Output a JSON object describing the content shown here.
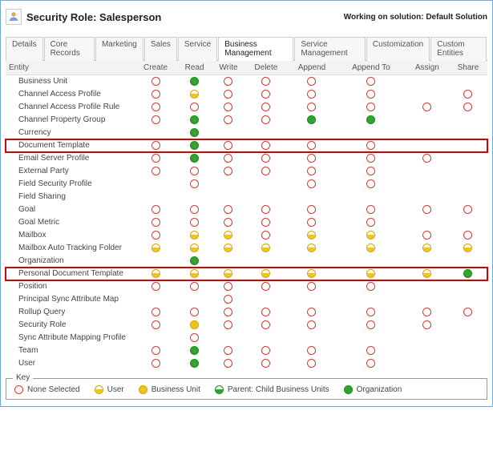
{
  "header": {
    "title": "Security Role: Salesperson",
    "solution": "Working on solution: Default Solution"
  },
  "tabs": [
    {
      "label": "Details"
    },
    {
      "label": "Core Records"
    },
    {
      "label": "Marketing"
    },
    {
      "label": "Sales"
    },
    {
      "label": "Service"
    },
    {
      "label": "Business Management"
    },
    {
      "label": "Service Management"
    },
    {
      "label": "Customization"
    },
    {
      "label": "Custom Entities"
    }
  ],
  "active_tab": "Business Management",
  "columns": [
    "Entity",
    "Create",
    "Read",
    "Write",
    "Delete",
    "Append",
    "Append To",
    "Assign",
    "Share"
  ],
  "levels": {
    "none": "lvl-none",
    "user": "lvl-user",
    "bu": "lvl-bu",
    "parent": "lvl-parent",
    "org": "lvl-org"
  },
  "highlights": [
    "Document Template",
    "Personal Document Template"
  ],
  "highlight_color": "#d40000",
  "rows": [
    {
      "entity": "Business Unit",
      "p": [
        "none",
        "org",
        "none",
        "none",
        "none",
        "none",
        "",
        ""
      ]
    },
    {
      "entity": "Channel Access Profile",
      "p": [
        "none",
        "user",
        "none",
        "none",
        "none",
        "none",
        "",
        "none"
      ]
    },
    {
      "entity": "Channel Access Profile Rule",
      "p": [
        "none",
        "none",
        "none",
        "none",
        "none",
        "none",
        "none",
        "none"
      ]
    },
    {
      "entity": "Channel Property Group",
      "p": [
        "none",
        "org",
        "none",
        "none",
        "org",
        "org",
        "",
        ""
      ]
    },
    {
      "entity": "Currency",
      "p": [
        "",
        "org",
        "",
        "",
        "",
        "",
        "",
        ""
      ]
    },
    {
      "entity": "Document Template",
      "p": [
        "none",
        "org",
        "none",
        "none",
        "none",
        "none",
        "",
        ""
      ]
    },
    {
      "entity": "Email Server Profile",
      "p": [
        "none",
        "org",
        "none",
        "none",
        "none",
        "none",
        "none",
        ""
      ]
    },
    {
      "entity": "External Party",
      "p": [
        "none",
        "none",
        "none",
        "none",
        "none",
        "none",
        "",
        ""
      ]
    },
    {
      "entity": "Field Security Profile",
      "p": [
        "",
        "none",
        "",
        "",
        "none",
        "none",
        "",
        ""
      ]
    },
    {
      "entity": "Field Sharing",
      "p": [
        "",
        "",
        "",
        "",
        "",
        "",
        "",
        ""
      ]
    },
    {
      "entity": "Goal",
      "p": [
        "none",
        "none",
        "none",
        "none",
        "none",
        "none",
        "none",
        "none"
      ]
    },
    {
      "entity": "Goal Metric",
      "p": [
        "none",
        "none",
        "none",
        "none",
        "none",
        "none",
        "",
        ""
      ]
    },
    {
      "entity": "Mailbox",
      "p": [
        "none",
        "user",
        "user",
        "none",
        "user",
        "user",
        "none",
        "none"
      ]
    },
    {
      "entity": "Mailbox Auto Tracking Folder",
      "p": [
        "user",
        "user",
        "user",
        "user",
        "user",
        "user",
        "user",
        "user"
      ]
    },
    {
      "entity": "Organization",
      "p": [
        "",
        "org",
        "",
        "",
        "",
        "",
        "",
        ""
      ]
    },
    {
      "entity": "Personal Document Template",
      "p": [
        "user",
        "user",
        "user",
        "user",
        "user",
        "user",
        "user",
        "org"
      ]
    },
    {
      "entity": "Position",
      "p": [
        "none",
        "none",
        "none",
        "none",
        "none",
        "none",
        "",
        ""
      ]
    },
    {
      "entity": "Principal Sync Attribute Map",
      "p": [
        "",
        "",
        "none",
        "",
        "",
        "",
        "",
        ""
      ]
    },
    {
      "entity": "Rollup Query",
      "p": [
        "none",
        "none",
        "none",
        "none",
        "none",
        "none",
        "none",
        "none"
      ]
    },
    {
      "entity": "Security Role",
      "p": [
        "none",
        "bu",
        "none",
        "none",
        "none",
        "none",
        "none",
        ""
      ]
    },
    {
      "entity": "Sync Attribute Mapping Profile",
      "p": [
        "",
        "none",
        "",
        "",
        "",
        "",
        "",
        ""
      ]
    },
    {
      "entity": "Team",
      "p": [
        "none",
        "org",
        "none",
        "none",
        "none",
        "none",
        "",
        ""
      ]
    },
    {
      "entity": "User",
      "p": [
        "none",
        "org",
        "none",
        "none",
        "none",
        "none",
        "",
        ""
      ]
    }
  ],
  "key": {
    "title": "Key",
    "items": [
      {
        "level": "none",
        "label": "None Selected"
      },
      {
        "level": "user",
        "label": "User"
      },
      {
        "level": "bu",
        "label": "Business Unit"
      },
      {
        "level": "parent",
        "label": "Parent: Child Business Units"
      },
      {
        "level": "org",
        "label": "Organization"
      }
    ]
  }
}
